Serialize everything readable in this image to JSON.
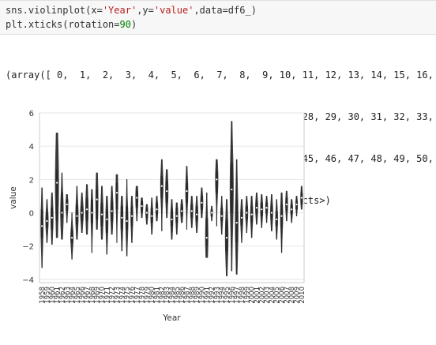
{
  "code": {
    "line1": {
      "prefix": "sns.violinplot(x=",
      "x_arg": "'Year'",
      "mid1": ",y=",
      "y_arg": "'value'",
      "mid2": ",data=df6_)"
    },
    "line2": {
      "prefix": "plt.xticks(rotation=",
      "num": "90",
      "suffix": ")"
    }
  },
  "output_lines": [
    "(array([ 0,  1,  2,  3,  4,  5,  6,  7,  8,  9, 10, 11, 12, 13, 14, 15, 16,",
    "        17, 18, 19, 20, 21, 22, 23, 24, 25, 26, 27, 28, 29, 30, 31, 32, 33,",
    "        34, 35, 36, 37, 38, 39, 40, 41, 42, 43, 44, 45, 46, 47, 48, 49, 50,",
    "        51, 52]), <a list of 53 Text xticklabel objects>)"
  ],
  "chart_data": {
    "type": "violin",
    "xlabel": "Year",
    "ylabel": "value",
    "ylim": [
      -4.2,
      6
    ],
    "yticks": [
      -4,
      -2,
      0,
      2,
      4,
      6
    ],
    "grid": true,
    "color": "#444444",
    "categories": [
      "1958",
      "1959",
      "1960",
      "1961",
      "1962",
      "1963",
      "1964",
      "1965",
      "1966",
      "1967",
      "1968",
      "1969",
      "1970",
      "1971",
      "1972",
      "1973",
      "1974",
      "1975",
      "1976",
      "1977",
      "1978",
      "1979",
      "1980",
      "1981",
      "1982",
      "1983",
      "1984",
      "1985",
      "1986",
      "1987",
      "1988",
      "1989",
      "1990",
      "1991",
      "1992",
      "1993",
      "1994",
      "1995",
      "1996",
      "1997",
      "1998",
      "1999",
      "2000",
      "2001",
      "2002",
      "2003",
      "2004",
      "2005",
      "2006",
      "2007",
      "2008",
      "2009",
      "2010"
    ],
    "violins": [
      {
        "min": -3.3,
        "max": 1.5,
        "q1": -1.5,
        "median": -0.8,
        "q3": 0.2,
        "width": 0.5
      },
      {
        "min": -1.8,
        "max": 0.8,
        "q1": -0.9,
        "median": -0.5,
        "q3": 0.0,
        "width": 0.55
      },
      {
        "min": -1.9,
        "max": 1.2,
        "q1": -1.0,
        "median": -0.3,
        "q3": 0.3,
        "width": 0.5
      },
      {
        "min": -1.5,
        "max": 4.8,
        "q1": -0.5,
        "median": 1.8,
        "q3": 2.6,
        "width": 0.7
      },
      {
        "min": -1.6,
        "max": 2.4,
        "q1": -0.3,
        "median": 0.0,
        "q3": 1.2,
        "width": 0.6
      },
      {
        "min": -0.6,
        "max": 1.1,
        "q1": 0.1,
        "median": 0.5,
        "q3": 0.8,
        "width": 0.45
      },
      {
        "min": -2.8,
        "max": 0.0,
        "q1": -1.8,
        "median": -1.5,
        "q3": -1.0,
        "width": 0.55
      },
      {
        "min": -1.6,
        "max": 1.6,
        "q1": -0.7,
        "median": -0.2,
        "q3": 0.5,
        "width": 0.55
      },
      {
        "min": -1.2,
        "max": 1.2,
        "q1": -0.5,
        "median": 0.0,
        "q3": 0.4,
        "width": 0.6
      },
      {
        "min": -1.3,
        "max": 1.7,
        "q1": -0.5,
        "median": 0.2,
        "q3": 0.9,
        "width": 0.55
      },
      {
        "min": -2.4,
        "max": 1.4,
        "q1": -0.6,
        "median": 0.0,
        "q3": 0.8,
        "width": 0.45
      },
      {
        "min": -1.0,
        "max": 2.4,
        "q1": -0.4,
        "median": 0.8,
        "q3": 1.4,
        "width": 0.5
      },
      {
        "min": -1.6,
        "max": 1.6,
        "q1": -0.8,
        "median": -0.1,
        "q3": 0.6,
        "width": 0.55
      },
      {
        "min": -2.5,
        "max": 1.0,
        "q1": -1.2,
        "median": -0.4,
        "q3": 0.2,
        "width": 0.5
      },
      {
        "min": -1.3,
        "max": 1.6,
        "q1": -0.5,
        "median": 0.1,
        "q3": 0.7,
        "width": 0.55
      },
      {
        "min": -1.8,
        "max": 2.3,
        "q1": 0.2,
        "median": 1.2,
        "q3": 1.8,
        "width": 0.45
      },
      {
        "min": -2.3,
        "max": 1.0,
        "q1": -1.0,
        "median": -0.3,
        "q3": 0.4,
        "width": 0.5
      },
      {
        "min": -2.6,
        "max": 2.0,
        "q1": -1.0,
        "median": -0.5,
        "q3": 0.4,
        "width": 0.5
      },
      {
        "min": -1.8,
        "max": 1.0,
        "q1": -0.8,
        "median": -0.2,
        "q3": 0.4,
        "width": 0.45
      },
      {
        "min": -0.5,
        "max": 1.6,
        "q1": 0.3,
        "median": 0.9,
        "q3": 1.3,
        "width": 0.5
      },
      {
        "min": -0.3,
        "max": 0.9,
        "q1": 0.1,
        "median": 0.4,
        "q3": 0.7,
        "width": 0.45
      },
      {
        "min": -0.7,
        "max": 0.5,
        "q1": -0.3,
        "median": 0.0,
        "q3": 0.3,
        "width": 0.45
      },
      {
        "min": -1.3,
        "max": 0.9,
        "q1": -0.6,
        "median": -0.2,
        "q3": 0.3,
        "width": 0.45
      },
      {
        "min": -0.5,
        "max": 1.0,
        "q1": -0.1,
        "median": 0.2,
        "q3": 0.6,
        "width": 0.45
      },
      {
        "min": -1.1,
        "max": 3.2,
        "q1": 0.9,
        "median": 1.6,
        "q3": 2.2,
        "width": 0.55
      },
      {
        "min": -0.3,
        "max": 2.6,
        "q1": 0.6,
        "median": 1.3,
        "q3": 1.9,
        "width": 0.55
      },
      {
        "min": -1.6,
        "max": 0.8,
        "q1": -0.8,
        "median": -0.4,
        "q3": 0.2,
        "width": 0.5
      },
      {
        "min": -1.3,
        "max": 0.6,
        "q1": -0.6,
        "median": -0.2,
        "q3": 0.3,
        "width": 0.45
      },
      {
        "min": -0.6,
        "max": 0.8,
        "q1": -0.2,
        "median": 0.1,
        "q3": 0.5,
        "width": 0.5
      },
      {
        "min": -1.0,
        "max": 2.8,
        "q1": 0.6,
        "median": 1.3,
        "q3": 1.8,
        "width": 0.5
      },
      {
        "min": -0.9,
        "max": 1.0,
        "q1": -0.3,
        "median": 0.1,
        "q3": 0.5,
        "width": 0.5
      },
      {
        "min": -1.2,
        "max": 1.0,
        "q1": -0.5,
        "median": -0.1,
        "q3": 0.4,
        "width": 0.5
      },
      {
        "min": -0.3,
        "max": 1.5,
        "q1": 0.2,
        "median": 0.6,
        "q3": 1.0,
        "width": 0.5
      },
      {
        "min": -2.7,
        "max": 1.2,
        "q1": -2.0,
        "median": -1.5,
        "q3": -0.3,
        "width": 0.55
      },
      {
        "min": -0.5,
        "max": 0.4,
        "q1": -0.2,
        "median": 0.0,
        "q3": 0.2,
        "width": 0.35
      },
      {
        "min": -0.8,
        "max": 3.2,
        "q1": 1.2,
        "median": 2.0,
        "q3": 2.5,
        "width": 0.55
      },
      {
        "min": -1.3,
        "max": 1.0,
        "q1": -0.5,
        "median": -0.2,
        "q3": 0.3,
        "width": 0.45
      },
      {
        "min": -3.8,
        "max": 0.8,
        "q1": -2.3,
        "median": -1.5,
        "q3": -0.4,
        "width": 0.6
      },
      {
        "min": -3.5,
        "max": 5.5,
        "q1": 0.0,
        "median": 1.4,
        "q3": 3.0,
        "width": 0.7
      },
      {
        "min": -3.7,
        "max": 3.2,
        "q1": -1.8,
        "median": -0.6,
        "q3": 0.8,
        "width": 0.6
      },
      {
        "min": -1.8,
        "max": 0.8,
        "q1": -0.8,
        "median": -0.3,
        "q3": 0.2,
        "width": 0.5
      },
      {
        "min": -1.2,
        "max": 1.0,
        "q1": -0.4,
        "median": 0.0,
        "q3": 0.4,
        "width": 0.5
      },
      {
        "min": -1.5,
        "max": 1.0,
        "q1": -0.6,
        "median": -0.1,
        "q3": 0.4,
        "width": 0.5
      },
      {
        "min": -0.7,
        "max": 1.2,
        "q1": -0.1,
        "median": 0.3,
        "q3": 0.7,
        "width": 0.5
      },
      {
        "min": -0.9,
        "max": 1.1,
        "q1": -0.2,
        "median": 0.2,
        "q3": 0.6,
        "width": 0.5
      },
      {
        "min": -0.6,
        "max": 1.0,
        "q1": 0.0,
        "median": 0.3,
        "q3": 0.6,
        "width": 0.45
      },
      {
        "min": -1.1,
        "max": 1.1,
        "q1": -0.4,
        "median": 0.0,
        "q3": 0.5,
        "width": 0.5
      },
      {
        "min": -1.6,
        "max": 0.8,
        "q1": -0.8,
        "median": -0.4,
        "q3": 0.1,
        "width": 0.45
      },
      {
        "min": -2.4,
        "max": 1.2,
        "q1": -0.9,
        "median": -0.2,
        "q3": 0.5,
        "width": 0.5
      },
      {
        "min": -0.5,
        "max": 1.3,
        "q1": 0.1,
        "median": 0.5,
        "q3": 0.9,
        "width": 0.45
      },
      {
        "min": -0.6,
        "max": 0.8,
        "q1": -0.1,
        "median": 0.2,
        "q3": 0.5,
        "width": 0.45
      },
      {
        "min": -0.2,
        "max": 1.0,
        "q1": 0.2,
        "median": 0.5,
        "q3": 0.7,
        "width": 0.4
      },
      {
        "min": 0.2,
        "max": 1.6,
        "q1": 0.5,
        "median": 0.9,
        "q3": 1.2,
        "width": 0.4
      }
    ]
  }
}
